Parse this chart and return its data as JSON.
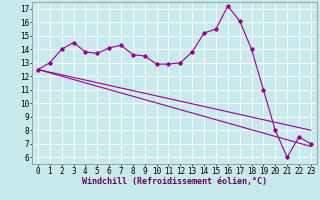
{
  "title": "",
  "xlabel": "Windchill (Refroidissement éolien,°C)",
  "ylabel": "",
  "bg_color": "#c8eaea",
  "grid_color": "#ffffff",
  "line_color": "#990099",
  "xlim": [
    -0.5,
    23.5
  ],
  "ylim": [
    5.5,
    17.5
  ],
  "xticks": [
    0,
    1,
    2,
    3,
    4,
    5,
    6,
    7,
    8,
    9,
    10,
    11,
    12,
    13,
    14,
    15,
    16,
    17,
    18,
    19,
    20,
    21,
    22,
    23
  ],
  "yticks": [
    6,
    7,
    8,
    9,
    10,
    11,
    12,
    13,
    14,
    15,
    16,
    17
  ],
  "data_x": [
    0,
    1,
    2,
    3,
    4,
    5,
    6,
    7,
    8,
    9,
    10,
    11,
    12,
    13,
    14,
    15,
    16,
    17,
    18,
    19,
    20,
    21,
    22,
    23
  ],
  "data_y": [
    12.5,
    13.0,
    14.0,
    14.5,
    13.8,
    13.7,
    14.1,
    14.3,
    13.6,
    13.5,
    12.9,
    12.9,
    13.0,
    13.8,
    15.2,
    15.5,
    17.2,
    16.1,
    14.0,
    11.0,
    8.0,
    6.0,
    7.5,
    7.0
  ],
  "trend1_x": [
    0,
    23
  ],
  "trend1_y": [
    12.5,
    8.0
  ],
  "trend2_x": [
    0,
    23
  ],
  "trend2_y": [
    12.5,
    6.8
  ],
  "tick_font_size": 5.5,
  "xlabel_font_size": 6.0,
  "marker": "D",
  "marker_size": 1.8,
  "line_width": 0.8
}
